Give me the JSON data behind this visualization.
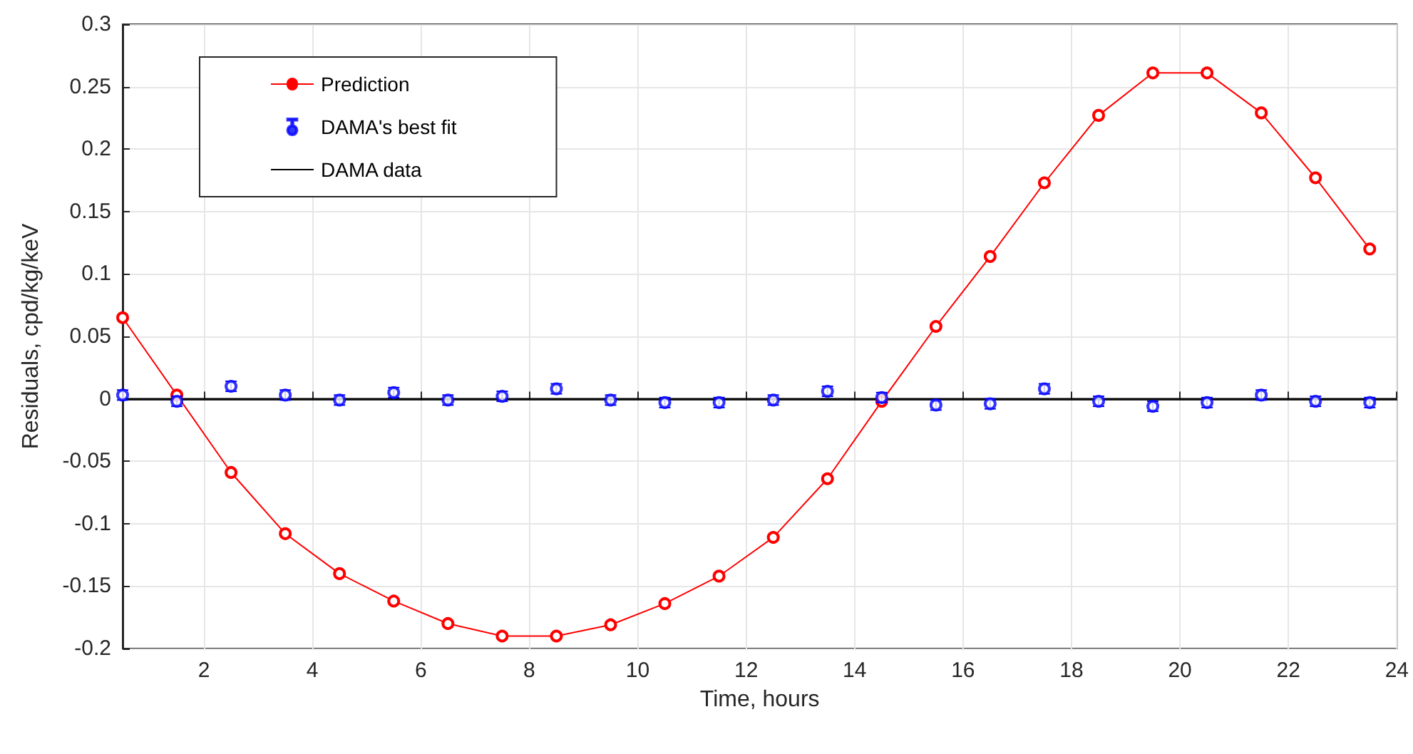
{
  "chart_data": {
    "type": "line",
    "xlabel": "Time, hours",
    "ylabel": "Residuals, cpd/kg/keV",
    "x": [
      0.5,
      1.5,
      2.5,
      3.5,
      4.5,
      5.5,
      6.5,
      7.5,
      8.5,
      9.5,
      10.5,
      11.5,
      12.5,
      13.5,
      14.5,
      15.5,
      16.5,
      17.5,
      18.5,
      19.5,
      20.5,
      21.5,
      22.5,
      23.5
    ],
    "series": [
      {
        "name": "Prediction",
        "color": "#ff0000",
        "marker": "circle",
        "values": [
          0.065,
          0.003,
          -0.059,
          -0.108,
          -0.14,
          -0.162,
          -0.18,
          -0.19,
          -0.19,
          -0.181,
          -0.164,
          -0.142,
          -0.111,
          -0.064,
          -0.002,
          0.058,
          0.114,
          0.173,
          0.227,
          0.261,
          0.261,
          0.229,
          0.177,
          0.12
        ]
      },
      {
        "name": "DAMA's best fit",
        "type": "scatter",
        "color": "#0000ff",
        "marker": "circle",
        "values": [
          0.003,
          -0.002,
          0.01,
          0.003,
          -0.001,
          0.005,
          -0.001,
          0.002,
          0.008,
          -0.001,
          -0.003,
          -0.003,
          -0.001,
          0.006,
          0.001,
          -0.005,
          -0.004,
          0.008,
          -0.002,
          -0.006,
          -0.003,
          0.003,
          -0.002,
          -0.003
        ],
        "errors": [
          0.004,
          0.004,
          0.004,
          0.004,
          0.004,
          0.004,
          0.004,
          0.004,
          0.004,
          0.004,
          0.004,
          0.004,
          0.004,
          0.004,
          0.004,
          0.004,
          0.004,
          0.004,
          0.004,
          0.004,
          0.004,
          0.004,
          0.004,
          0.004
        ]
      },
      {
        "name": "DAMA data",
        "color": "#000000",
        "marker": "none",
        "x": [
          0.5,
          24
        ],
        "values": [
          0,
          0
        ]
      }
    ],
    "xlim": [
      0.5,
      24
    ],
    "xticks": [
      2,
      4,
      6,
      8,
      10,
      12,
      14,
      16,
      18,
      20,
      22,
      24
    ],
    "ylim": [
      -0.2,
      0.3
    ],
    "yticks": [
      -0.2,
      -0.15,
      -0.1,
      -0.05,
      0,
      0.05,
      0.1,
      0.15,
      0.2,
      0.25,
      0.3
    ],
    "grid": true,
    "legend": "top left"
  }
}
